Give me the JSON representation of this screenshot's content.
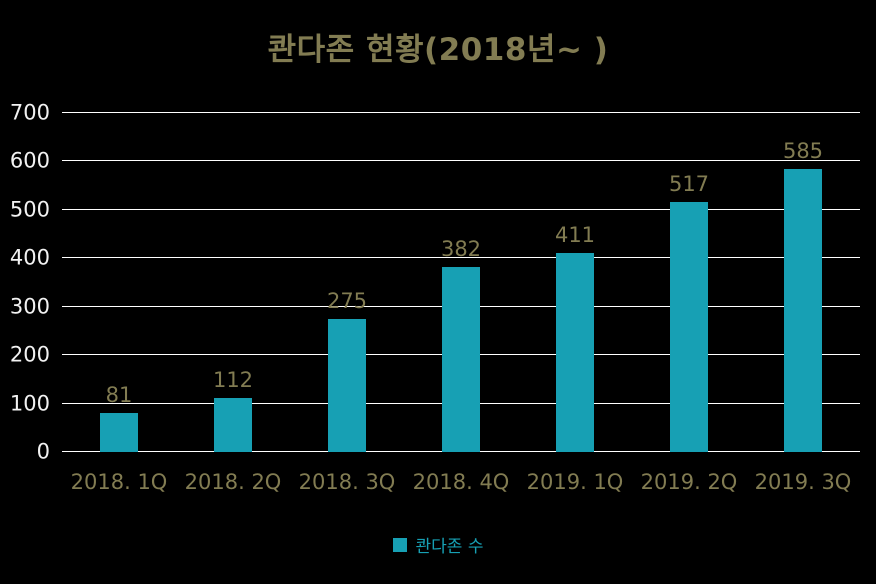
{
  "chart_data": {
    "type": "bar",
    "title": "콴다존 현황(2018년~ )",
    "categories": [
      "2018. 1Q",
      "2018. 2Q",
      "2018. 3Q",
      "2018. 4Q",
      "2019. 1Q",
      "2019. 2Q",
      "2019. 3Q"
    ],
    "series": [
      {
        "name": "콴다존 수",
        "values": [
          81,
          112,
          275,
          382,
          411,
          517,
          585
        ]
      }
    ],
    "xlabel": "",
    "ylabel": "",
    "ylim": [
      0,
      700
    ],
    "ytick_interval": 100,
    "grid": true,
    "legend_position": "bottom"
  },
  "colors": {
    "background": "#000000",
    "bar": "#17A0B4",
    "title": "#827C52",
    "data_label": "#827C52",
    "category_label": "#827C52",
    "axis_label": "#F2F2F2",
    "gridline": "#FFFFFF",
    "legend_text": "#17A0B4"
  }
}
